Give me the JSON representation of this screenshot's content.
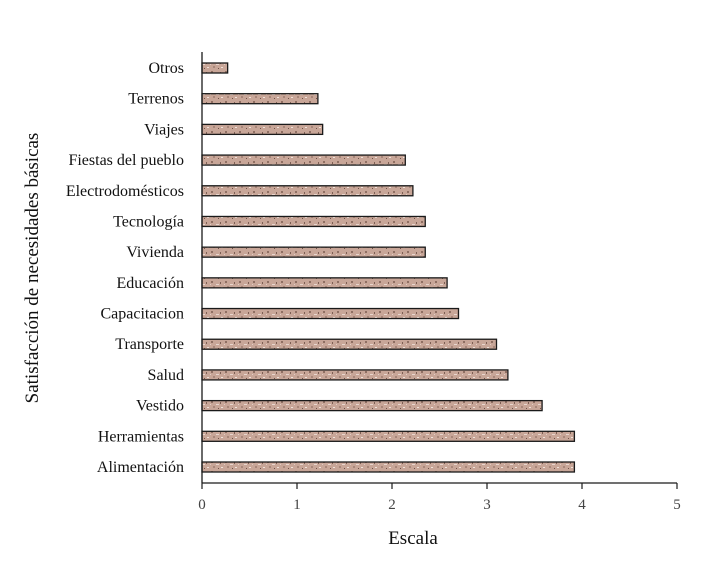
{
  "chart_data": {
    "type": "bar",
    "orientation": "horizontal",
    "title": "",
    "categories": [
      "Alimentación",
      "Herramientas",
      "Vestido",
      "Salud",
      "Transporte",
      "Capacitacion",
      "Educación",
      "Vivienda",
      "Tecnología",
      "Electrodomésticos",
      "Fiestas del pueblo",
      "Viajes",
      "Terrenos",
      "Otros"
    ],
    "values": [
      3.92,
      3.92,
      3.58,
      3.22,
      3.1,
      2.7,
      2.58,
      2.35,
      2.35,
      2.22,
      2.14,
      1.27,
      1.22,
      0.27
    ],
    "xlabel": "Escala",
    "ylabel": "Satisfacción de necesidades básicas",
    "xlim": [
      0,
      5
    ],
    "xticks": [
      "0",
      "1",
      "2",
      "3",
      "4",
      "5"
    ],
    "grid": false,
    "legend": "none",
    "bar_color": "#c9a99c",
    "bar_edge_color": "#1a1a1a"
  }
}
